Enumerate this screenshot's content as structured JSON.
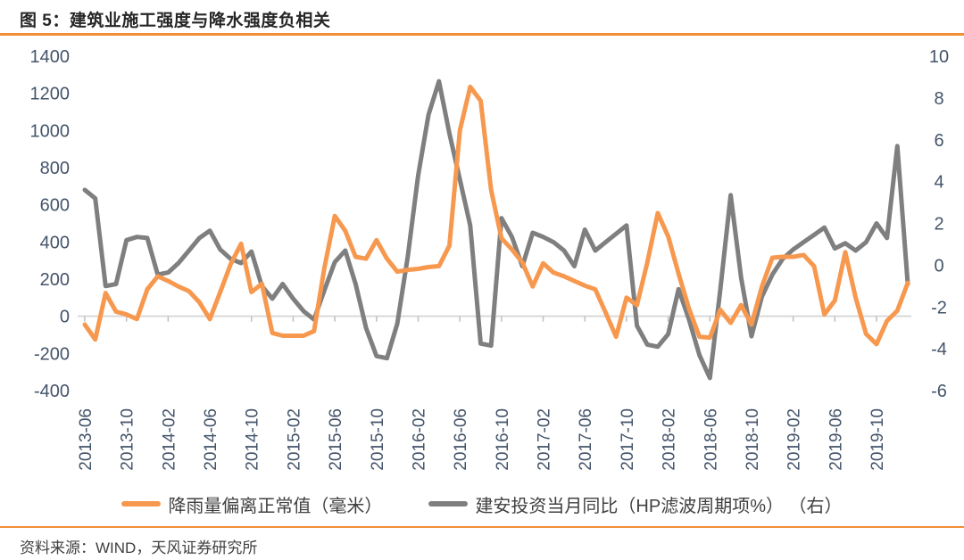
{
  "title": "图 5：建筑业施工强度与降水强度负相关",
  "source": "资料来源：WIND，天风证券研究所",
  "colors": {
    "accent_orange": "#F7984F",
    "series_gray": "#7F7F7F",
    "rule_orange": "#F28E35",
    "axis_text": "#44546A",
    "zero_line": "#D9D9D9",
    "tick_mark": "#BFBFBF",
    "title_text": "#262626",
    "legend_text": "#404040"
  },
  "chart_data": {
    "type": "line",
    "title": "建筑业施工强度与降水强度负相关",
    "frequency": "monthly",
    "start_month": "2013-06",
    "end_month": "2020-01",
    "x_tick_every": 4,
    "x_tick_labels": [
      "2013-06",
      "2013-10",
      "2014-02",
      "2014-06",
      "2014-10",
      "2015-02",
      "2015-06",
      "2015-10",
      "2016-02",
      "2016-06",
      "2016-10",
      "2017-02",
      "2017-06",
      "2017-10",
      "2018-02",
      "2018-06",
      "2018-10",
      "2019-02",
      "2019-06",
      "2019-10"
    ],
    "left_axis": {
      "min": -400,
      "max": 1400,
      "step": 200,
      "ticks": [
        1400,
        1200,
        1000,
        800,
        600,
        400,
        200,
        0,
        -200,
        -400
      ]
    },
    "right_axis": {
      "min": -6,
      "max": 10,
      "step": 2,
      "ticks": [
        10,
        8,
        6,
        4,
        2,
        0,
        -2,
        -4,
        -6
      ]
    },
    "grid": "zero-line-only",
    "legend_position": "bottom",
    "series": [
      {
        "name": "降雨量偏离正常值（毫米）",
        "axis": "left",
        "color": "#F7984F",
        "values": [
          -45,
          -125,
          125,
          25,
          10,
          -15,
          145,
          215,
          190,
          160,
          135,
          75,
          -15,
          130,
          280,
          390,
          130,
          175,
          -90,
          -105,
          -105,
          -105,
          -80,
          260,
          540,
          460,
          320,
          310,
          410,
          310,
          240,
          250,
          255,
          265,
          270,
          380,
          1000,
          1235,
          1160,
          680,
          420,
          360,
          290,
          160,
          285,
          235,
          215,
          190,
          165,
          145,
          20,
          -110,
          100,
          60,
          290,
          555,
          430,
          230,
          40,
          -110,
          -115,
          35,
          -35,
          60,
          -45,
          160,
          315,
          320,
          320,
          330,
          270,
          10,
          85,
          345,
          100,
          -95,
          -150,
          -25,
          30,
          180
        ]
      },
      {
        "name": "建安投资当月同比（HP滤波周期项%） （右）",
        "axis": "right",
        "color": "#7F7F7F",
        "values": [
          3.6,
          3.2,
          -1.0,
          -0.9,
          1.2,
          1.35,
          1.3,
          -0.45,
          -0.35,
          0.1,
          0.7,
          1.3,
          1.65,
          0.75,
          0.3,
          0.1,
          0.65,
          -1.0,
          -1.6,
          -0.9,
          -1.6,
          -2.2,
          -2.6,
          -1.2,
          0.15,
          0.7,
          -0.9,
          -3.0,
          -4.35,
          -4.45,
          -2.8,
          0.4,
          4.3,
          7.2,
          8.8,
          6.3,
          4.1,
          1.9,
          -3.75,
          -3.85,
          2.25,
          1.35,
          -0.05,
          1.55,
          1.35,
          1.1,
          0.7,
          -0.05,
          1.7,
          0.7,
          1.1,
          1.5,
          1.9,
          -2.9,
          -3.8,
          -3.9,
          -3.3,
          -1.15,
          -2.6,
          -4.3,
          -5.4,
          -1.2,
          3.35,
          -0.6,
          -3.4,
          -1.5,
          -0.45,
          0.3,
          0.75,
          1.1,
          1.45,
          1.8,
          0.8,
          1.05,
          0.7,
          1.1,
          2.0,
          1.3,
          5.7,
          -0.9
        ]
      }
    ]
  }
}
